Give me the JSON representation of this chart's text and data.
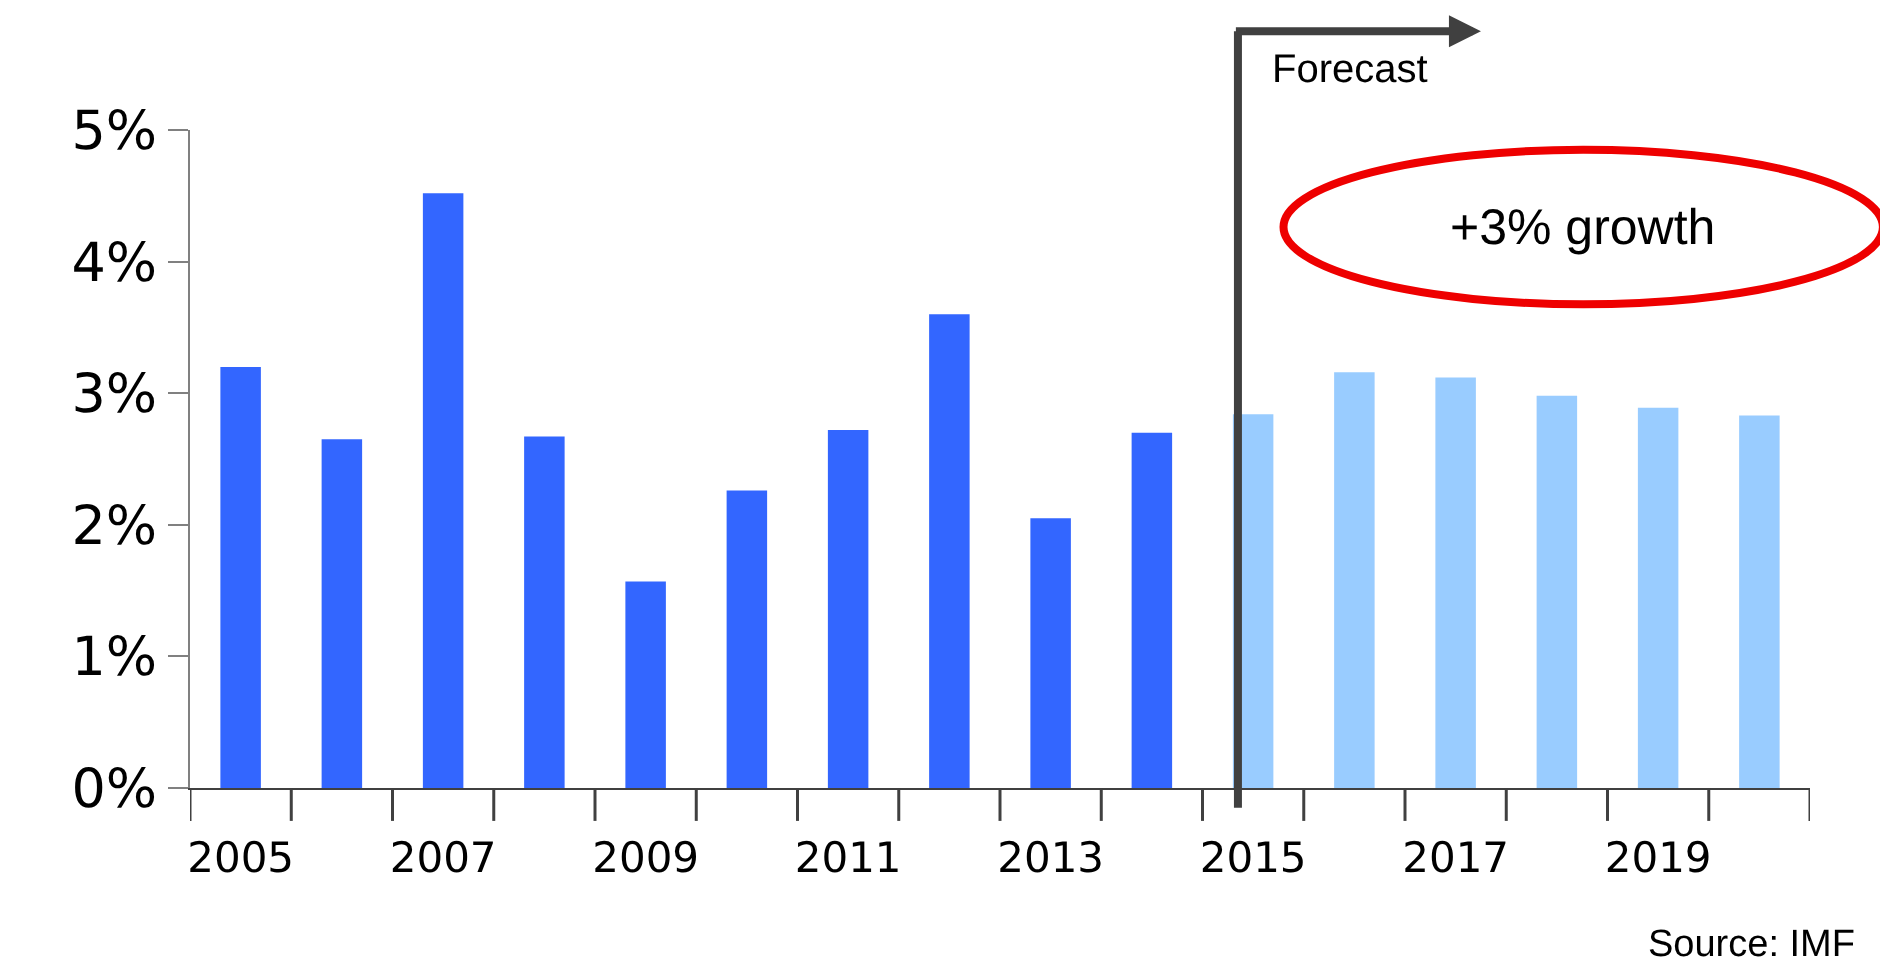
{
  "chart_data": {
    "type": "bar",
    "categories": [
      "2005",
      null,
      "2007",
      null,
      "2009",
      null,
      "2011",
      null,
      "2013",
      null,
      "2015",
      null,
      "2017",
      null,
      "2019",
      null
    ],
    "values": [
      3.2,
      2.65,
      4.52,
      2.67,
      1.57,
      2.26,
      2.72,
      3.6,
      2.05,
      2.7,
      2.84,
      3.16,
      3.12,
      2.98,
      2.89,
      2.83
    ],
    "colors": [
      "#3366ff",
      "#3366ff",
      "#3366ff",
      "#3366ff",
      "#3366ff",
      "#3366ff",
      "#3366ff",
      "#3366ff",
      "#3366ff",
      "#3366ff",
      "#99ccff",
      "#99ccff",
      "#99ccff",
      "#99ccff",
      "#99ccff",
      "#99ccff"
    ],
    "ylim": [
      0,
      5
    ],
    "yticks": [
      {
        "value": 0,
        "label": "0%"
      },
      {
        "value": 1,
        "label": "1%"
      },
      {
        "value": 2,
        "label": "2%"
      },
      {
        "value": 3,
        "label": "3%"
      },
      {
        "value": 4,
        "label": "4%"
      },
      {
        "value": 5,
        "label": "5%"
      }
    ],
    "ref_lines": [
      {
        "axis": "x",
        "value": "2015",
        "label": "Forecast",
        "color": "#404040"
      }
    ],
    "annotations": [
      "+3% growth",
      "Source: IMF"
    ]
  }
}
